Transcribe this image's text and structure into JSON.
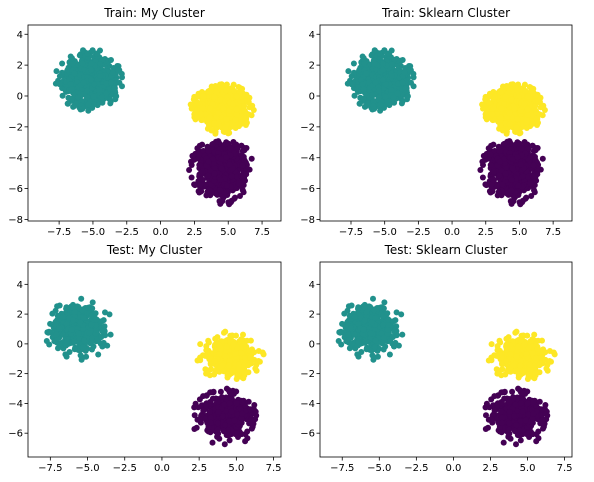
{
  "chart_data": [
    {
      "type": "scatter",
      "title": "Train: My Cluster",
      "xlim": [
        -9.8,
        8.9
      ],
      "ylim": [
        -8.1,
        4.6
      ],
      "xticks": [
        -7.5,
        -5.0,
        -2.5,
        0.0,
        2.5,
        5.0,
        7.5
      ],
      "xtick_labels": [
        "−7.5",
        "−5.0",
        "−2.5",
        "0.0",
        "2.5",
        "5.0",
        "7.5"
      ],
      "yticks": [
        -8,
        -6,
        -4,
        -2,
        0,
        2,
        4
      ],
      "ytick_labels": [
        "−8",
        "−6",
        "−4",
        "−2",
        "0",
        "2",
        "4"
      ],
      "clusters": [
        {
          "color": "#21918c",
          "center": [
            -5.3,
            1.0
          ],
          "radius": [
            2.5,
            2.1
          ],
          "count": 900,
          "seed": 11
        },
        {
          "color": "#fde725",
          "center": [
            4.6,
            -0.8
          ],
          "radius": [
            2.4,
            1.7
          ],
          "count": 700,
          "seed": 12,
          "ymin": -2.9
        },
        {
          "color": "#440154",
          "center": [
            4.5,
            -4.8
          ],
          "radius": [
            2.4,
            2.3
          ],
          "count": 700,
          "seed": 13,
          "ymax": -2.9
        }
      ]
    },
    {
      "type": "scatter",
      "title": "Train: Sklearn Cluster",
      "xlim": [
        -9.8,
        8.9
      ],
      "ylim": [
        -8.1,
        4.6
      ],
      "xticks": [
        -7.5,
        -5.0,
        -2.5,
        0.0,
        2.5,
        5.0,
        7.5
      ],
      "xtick_labels": [
        "−7.5",
        "−5.0",
        "−2.5",
        "0.0",
        "2.5",
        "5.0",
        "7.5"
      ],
      "yticks": [
        -8,
        -6,
        -4,
        -2,
        0,
        2,
        4
      ],
      "ytick_labels": [
        "−8",
        "−6",
        "−4",
        "−2",
        "0",
        "2",
        "4"
      ],
      "clusters": [
        {
          "color": "#21918c",
          "center": [
            -5.3,
            1.0
          ],
          "radius": [
            2.5,
            2.1
          ],
          "count": 900,
          "seed": 11
        },
        {
          "color": "#fde725",
          "center": [
            4.6,
            -0.8
          ],
          "radius": [
            2.4,
            1.7
          ],
          "count": 700,
          "seed": 12,
          "ymin": -2.9
        },
        {
          "color": "#440154",
          "center": [
            4.5,
            -4.8
          ],
          "radius": [
            2.4,
            2.3
          ],
          "count": 700,
          "seed": 13,
          "ymax": -2.9
        }
      ]
    },
    {
      "type": "scatter",
      "title": "Test: My Cluster",
      "xlim": [
        -9.0,
        8.0
      ],
      "ylim": [
        -7.6,
        5.5
      ],
      "xticks": [
        -7.5,
        -5.0,
        -2.5,
        0.0,
        2.5,
        5.0,
        7.5
      ],
      "xtick_labels": [
        "−7.5",
        "−5.0",
        "−2.5",
        "0.0",
        "2.5",
        "5.0",
        "7.5"
      ],
      "yticks": [
        -6,
        -4,
        -2,
        0,
        2,
        4
      ],
      "ytick_labels": [
        "−6",
        "−4",
        "−2",
        "0",
        "2",
        "4"
      ],
      "clusters": [
        {
          "color": "#21918c",
          "center": [
            -5.6,
            1.0
          ],
          "radius": [
            2.4,
            2.1
          ],
          "count": 450,
          "seed": 21
        },
        {
          "color": "#fde725",
          "center": [
            4.6,
            -0.8
          ],
          "radius": [
            2.3,
            1.7
          ],
          "count": 380,
          "seed": 22,
          "ymin": -2.9
        },
        {
          "color": "#440154",
          "center": [
            4.2,
            -4.9
          ],
          "radius": [
            2.3,
            2.1
          ],
          "count": 380,
          "seed": 23,
          "ymax": -2.9
        }
      ]
    },
    {
      "type": "scatter",
      "title": "Test: Sklearn Cluster",
      "xlim": [
        -9.0,
        8.0
      ],
      "ylim": [
        -7.6,
        5.5
      ],
      "xticks": [
        -7.5,
        -5.0,
        -2.5,
        0.0,
        2.5,
        5.0,
        7.5
      ],
      "xtick_labels": [
        "−7.5",
        "−5.0",
        "−2.5",
        "0.0",
        "2.5",
        "5.0",
        "7.5"
      ],
      "yticks": [
        -6,
        -4,
        -2,
        0,
        2,
        4
      ],
      "ytick_labels": [
        "−6",
        "−4",
        "−2",
        "0",
        "2",
        "4"
      ],
      "clusters": [
        {
          "color": "#21918c",
          "center": [
            -5.6,
            1.0
          ],
          "radius": [
            2.4,
            2.1
          ],
          "count": 450,
          "seed": 21
        },
        {
          "color": "#fde725",
          "center": [
            4.6,
            -0.8
          ],
          "radius": [
            2.3,
            1.7
          ],
          "count": 380,
          "seed": 22,
          "ymin": -2.9
        },
        {
          "color": "#440154",
          "center": [
            4.2,
            -4.9
          ],
          "radius": [
            2.3,
            2.1
          ],
          "count": 380,
          "seed": 23,
          "ymax": -2.9
        }
      ]
    }
  ]
}
